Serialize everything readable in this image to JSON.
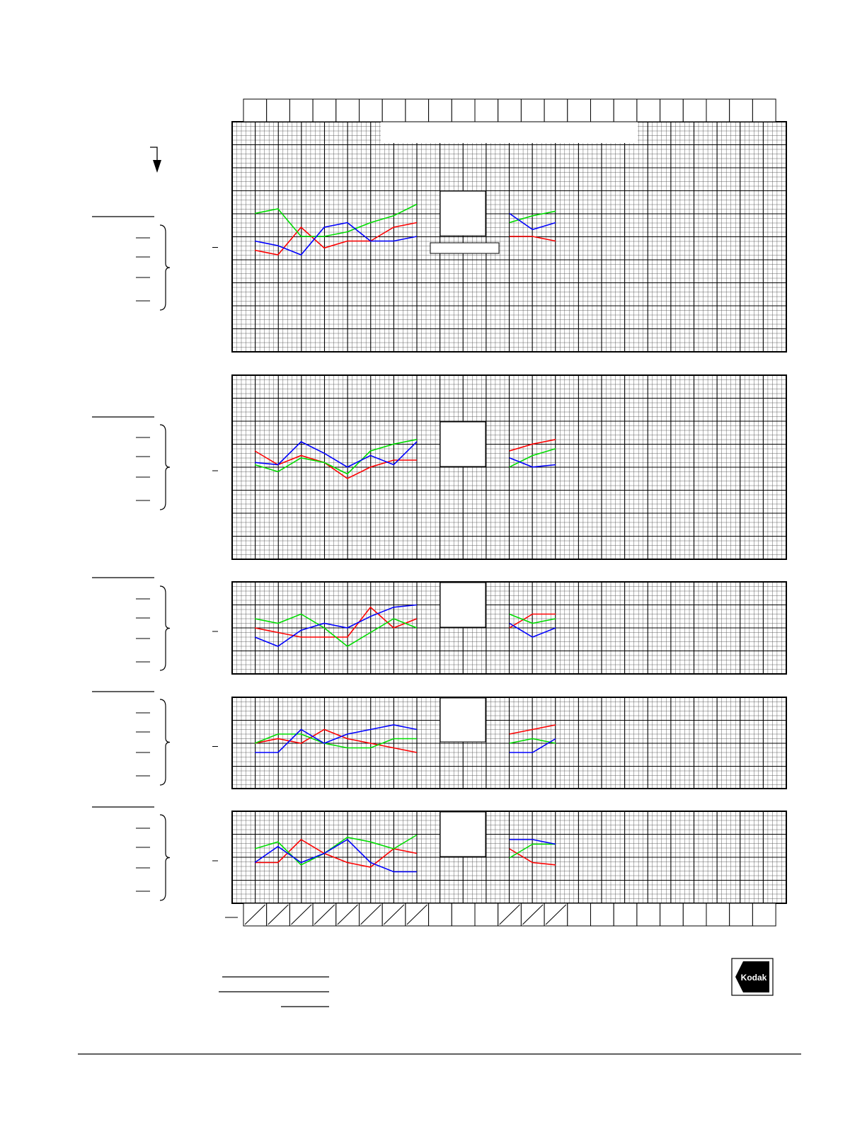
{
  "logo": {
    "text": "Kodak"
  },
  "colors": {
    "red": "#ff0000",
    "green": "#00dd00",
    "blue": "#0000ff",
    "grid": "#000000",
    "background": "#ffffff"
  },
  "chart_data": [
    {
      "type": "line",
      "x": [
        1,
        2,
        3,
        4,
        5,
        6,
        7,
        8,
        9,
        10,
        11,
        12,
        13,
        14
      ],
      "grid": true,
      "series": [
        {
          "color": "red",
          "values": [
            -0.06,
            -0.08,
            0.04,
            -0.05,
            -0.02,
            -0.02,
            0.04,
            0.06,
            null,
            null,
            null,
            0.0,
            0.0,
            -0.02
          ]
        },
        {
          "color": "green",
          "values": [
            0.1,
            0.12,
            0.0,
            0.0,
            0.02,
            0.06,
            0.09,
            0.14,
            null,
            null,
            null,
            0.06,
            0.09,
            0.11
          ]
        },
        {
          "color": "blue",
          "values": [
            -0.02,
            -0.04,
            -0.08,
            0.04,
            0.06,
            -0.02,
            -0.02,
            0.0,
            null,
            null,
            null,
            0.1,
            0.03,
            0.06
          ]
        }
      ]
    },
    {
      "type": "line",
      "x": [
        1,
        2,
        3,
        4,
        5,
        6,
        7,
        8,
        9,
        10,
        11,
        12,
        13,
        14
      ],
      "grid": true,
      "series": [
        {
          "color": "red",
          "values": [
            0.04,
            -0.02,
            0.02,
            -0.01,
            -0.08,
            -0.03,
            0.0,
            0.0,
            null,
            null,
            null,
            0.04,
            0.07,
            0.09
          ]
        },
        {
          "color": "green",
          "values": [
            -0.02,
            -0.05,
            0.01,
            -0.01,
            -0.06,
            0.04,
            0.07,
            0.09,
            null,
            null,
            null,
            -0.03,
            0.02,
            0.05
          ]
        },
        {
          "color": "blue",
          "values": [
            -0.01,
            -0.02,
            0.08,
            0.03,
            -0.03,
            0.02,
            -0.02,
            0.08,
            null,
            null,
            null,
            0.01,
            -0.03,
            -0.02
          ]
        }
      ]
    },
    {
      "type": "line",
      "x": [
        1,
        2,
        3,
        4,
        5,
        6,
        7,
        8,
        9,
        10,
        11,
        12,
        13,
        14
      ],
      "grid": true,
      "series": [
        {
          "color": "red",
          "values": [
            0.0,
            -0.02,
            -0.04,
            -0.04,
            -0.04,
            0.09,
            0.0,
            0.04,
            null,
            null,
            null,
            0.0,
            0.06,
            0.06
          ]
        },
        {
          "color": "green",
          "values": [
            0.04,
            0.02,
            0.06,
            0.0,
            -0.08,
            -0.02,
            0.04,
            0.0,
            null,
            null,
            null,
            0.06,
            0.02,
            0.04
          ]
        },
        {
          "color": "blue",
          "values": [
            -0.04,
            -0.08,
            -0.01,
            0.02,
            0.0,
            0.05,
            0.09,
            0.1,
            null,
            null,
            null,
            0.02,
            -0.04,
            0.0
          ]
        }
      ]
    },
    {
      "type": "line",
      "x": [
        1,
        2,
        3,
        4,
        5,
        6,
        7,
        8,
        9,
        10,
        11,
        12,
        13,
        14
      ],
      "grid": true,
      "series": [
        {
          "color": "red",
          "values": [
            0.0,
            0.02,
            0.0,
            0.06,
            0.02,
            0.0,
            -0.02,
            -0.04,
            null,
            null,
            null,
            0.04,
            0.06,
            0.08
          ]
        },
        {
          "color": "green",
          "values": [
            0.0,
            0.04,
            0.04,
            0.0,
            -0.02,
            -0.02,
            0.02,
            0.02,
            null,
            null,
            null,
            0.0,
            0.02,
            0.0
          ]
        },
        {
          "color": "blue",
          "values": [
            -0.04,
            -0.04,
            0.06,
            0.0,
            0.04,
            0.06,
            0.08,
            0.06,
            null,
            null,
            null,
            -0.04,
            -0.04,
            0.02
          ]
        }
      ]
    },
    {
      "type": "line",
      "x": [
        1,
        2,
        3,
        4,
        5,
        6,
        7,
        8,
        9,
        10,
        11,
        12,
        13,
        14
      ],
      "grid": true,
      "series": [
        {
          "color": "red",
          "values": [
            -0.02,
            -0.02,
            0.08,
            0.02,
            -0.02,
            -0.04,
            0.04,
            0.02,
            null,
            null,
            null,
            0.04,
            -0.02,
            -0.03
          ]
        },
        {
          "color": "green",
          "values": [
            0.04,
            0.07,
            -0.03,
            0.02,
            0.09,
            0.07,
            0.04,
            0.1,
            null,
            null,
            null,
            0.0,
            0.06,
            0.06
          ]
        },
        {
          "color": "blue",
          "values": [
            -0.02,
            0.05,
            -0.02,
            0.02,
            0.08,
            -0.02,
            -0.06,
            -0.06,
            null,
            null,
            null,
            0.08,
            0.08,
            0.06
          ]
        }
      ]
    }
  ]
}
